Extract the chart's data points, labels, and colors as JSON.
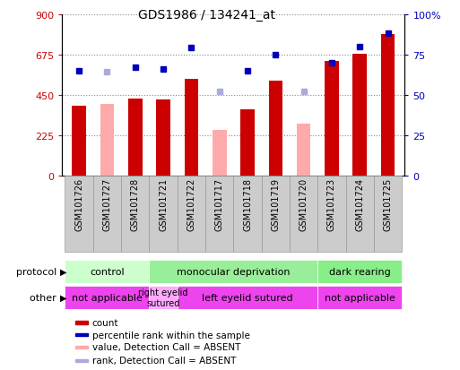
{
  "title": "GDS1986 / 134241_at",
  "samples": [
    "GSM101726",
    "GSM101727",
    "GSM101728",
    "GSM101721",
    "GSM101722",
    "GSM101717",
    "GSM101718",
    "GSM101719",
    "GSM101720",
    "GSM101723",
    "GSM101724",
    "GSM101725"
  ],
  "count_values": [
    390,
    null,
    430,
    425,
    540,
    null,
    370,
    530,
    null,
    640,
    680,
    790
  ],
  "absent_value_values": [
    null,
    400,
    null,
    null,
    null,
    255,
    null,
    null,
    290,
    null,
    null,
    null
  ],
  "rank_values": [
    65,
    null,
    67,
    66,
    79,
    null,
    65,
    75,
    null,
    70,
    80,
    88
  ],
  "absent_rank_values": [
    null,
    64,
    null,
    null,
    null,
    52,
    null,
    null,
    52,
    null,
    null,
    null
  ],
  "ylim_left": [
    0,
    900
  ],
  "ylim_right": [
    0,
    100
  ],
  "yticks_left": [
    0,
    225,
    450,
    675,
    900
  ],
  "yticks_right": [
    0,
    25,
    50,
    75,
    100
  ],
  "ytick_labels_left": [
    "0",
    "225",
    "450",
    "675",
    "900"
  ],
  "ytick_labels_right": [
    "0",
    "25",
    "50",
    "75",
    "100%"
  ],
  "bar_color_present": "#cc0000",
  "bar_color_absent": "#ffaaaa",
  "dot_color_present": "#0000bb",
  "dot_color_absent": "#aaaadd",
  "protocol_groups": [
    {
      "label": "control",
      "start": 0,
      "end": 3,
      "color": "#ccffcc"
    },
    {
      "label": "monocular deprivation",
      "start": 3,
      "end": 9,
      "color": "#99ee99"
    },
    {
      "label": "dark rearing",
      "start": 9,
      "end": 12,
      "color": "#88ee88"
    }
  ],
  "other_groups": [
    {
      "label": "not applicable",
      "start": 0,
      "end": 3,
      "color": "#ee44ee"
    },
    {
      "label": "right eyelid\nsutured",
      "start": 3,
      "end": 4,
      "color": "#ffaaff"
    },
    {
      "label": "left eyelid sutured",
      "start": 4,
      "end": 9,
      "color": "#ee44ee"
    },
    {
      "label": "not applicable",
      "start": 9,
      "end": 12,
      "color": "#ee44ee"
    }
  ],
  "legend_items": [
    {
      "label": "count",
      "color": "#cc0000"
    },
    {
      "label": "percentile rank within the sample",
      "color": "#0000bb"
    },
    {
      "label": "value, Detection Call = ABSENT",
      "color": "#ffaaaa"
    },
    {
      "label": "rank, Detection Call = ABSENT",
      "color": "#aaaadd"
    }
  ],
  "grid_color": "#888888",
  "bg_color": "#ffffff",
  "left_label_color": "#cc0000",
  "right_label_color": "#0000bb",
  "bar_width": 0.5,
  "n_samples": 12
}
